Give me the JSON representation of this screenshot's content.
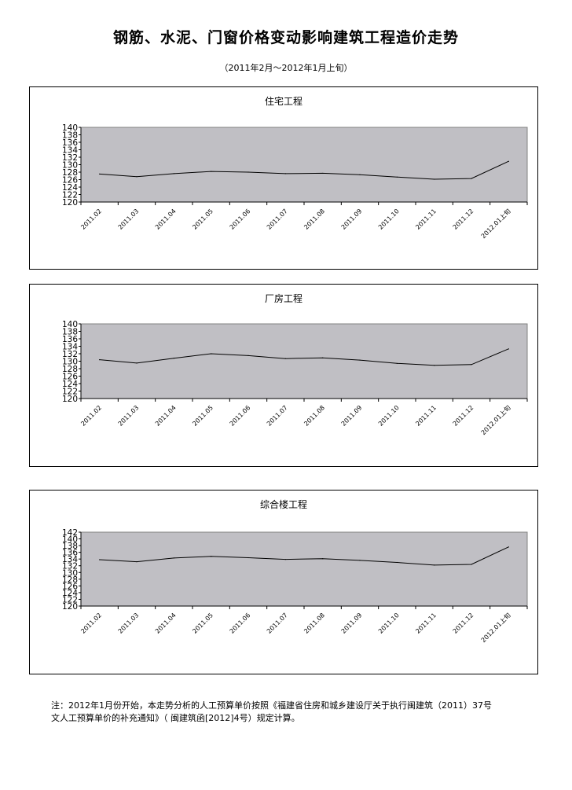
{
  "page": {
    "title": "钢筋、水泥、门窗价格变动影响建筑工程造价走势",
    "subtitle": "（2011年2月～2012年1月上旬）",
    "note_line1": "注：2012年1月份开始，本走势分析的人工预算单价按照《福建省住房和城乡建设厅关于执行闽建筑（2011）37号",
    "note_line2": "文人工预算单价的补充通知》（ 闽建筑函[2012]4号）规定计算。"
  },
  "colors": {
    "plot_background": "#c0bfc4",
    "line": "#000000"
  },
  "chart_data": [
    {
      "type": "line",
      "title": "住宅工程",
      "categories": [
        "2011.02",
        "2011.03",
        "2011.04",
        "2011.05",
        "2011.06",
        "2011.07",
        "2011.08",
        "2011.09",
        "2011.10",
        "2011.11",
        "2011.12",
        "2012.01上旬"
      ],
      "values": [
        127.5,
        126.8,
        127.6,
        128.2,
        128.0,
        127.6,
        127.7,
        127.3,
        126.7,
        126.1,
        126.3,
        130.9
      ],
      "ylim": [
        120,
        140
      ],
      "yticks": [
        120,
        122,
        124,
        126,
        128,
        130,
        132,
        134,
        136,
        138,
        140
      ],
      "grid": false
    },
    {
      "type": "line",
      "title": "厂房工程",
      "categories": [
        "2011.02",
        "2011.03",
        "2011.04",
        "2011.05",
        "2011.06",
        "2011.07",
        "2011.08",
        "2011.09",
        "2011.10",
        "2011.11",
        "2011.12",
        "2012.01上旬"
      ],
      "values": [
        130.4,
        129.5,
        130.8,
        132.0,
        131.5,
        130.7,
        130.9,
        130.3,
        129.4,
        128.9,
        129.1,
        133.3
      ],
      "ylim": [
        120,
        140
      ],
      "yticks": [
        120,
        122,
        124,
        126,
        128,
        130,
        132,
        134,
        136,
        138,
        140
      ],
      "grid": false
    },
    {
      "type": "line",
      "title": "综合楼工程",
      "categories": [
        "2011.02",
        "2011.03",
        "2011.04",
        "2011.05",
        "2011.06",
        "2011.07",
        "2011.08",
        "2011.09",
        "2011.10",
        "2011.11",
        "2011.12",
        "2012.01上旬"
      ],
      "values": [
        133.8,
        133.2,
        134.3,
        134.8,
        134.4,
        133.9,
        134.1,
        133.6,
        133.0,
        132.2,
        132.4,
        137.6
      ],
      "ylim": [
        120,
        142
      ],
      "yticks": [
        120,
        122,
        124,
        126,
        128,
        130,
        132,
        134,
        136,
        138,
        140,
        142
      ],
      "grid": false
    }
  ]
}
